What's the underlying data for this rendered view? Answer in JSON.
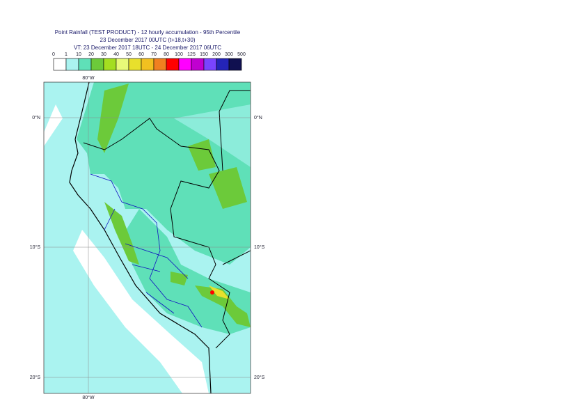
{
  "header": {
    "title": "Point Rainfall (TEST PRODUCT) - 12 hourly accumulation - 95th Percentile",
    "run": "23 December 2017 00UTC (t+18,t+30)",
    "valid": "VT: 23 December 2017 18UTC - 24 December 2017 06UTC"
  },
  "legend": {
    "ticks": [
      "0",
      "1",
      "10",
      "20",
      "30",
      "40",
      "50",
      "60",
      "70",
      "80",
      "100",
      "125",
      "150",
      "200",
      "300",
      "500"
    ],
    "colors": [
      "#ffffff",
      "#aaf3f0",
      "#5fe0b8",
      "#6cca3a",
      "#a4de20",
      "#e8fa78",
      "#e8e02c",
      "#f2c020",
      "#f08020",
      "#ff0000",
      "#ff00ff",
      "#c000d0",
      "#7a44ff",
      "#2424b8",
      "#101050"
    ]
  },
  "map": {
    "lon_labels": [
      "80°W",
      "80°W"
    ],
    "lat_labels_left": [
      "0°N",
      "10°S",
      "20°S"
    ],
    "lat_labels_right": [
      "0°N",
      "10°S",
      "20°S"
    ]
  }
}
